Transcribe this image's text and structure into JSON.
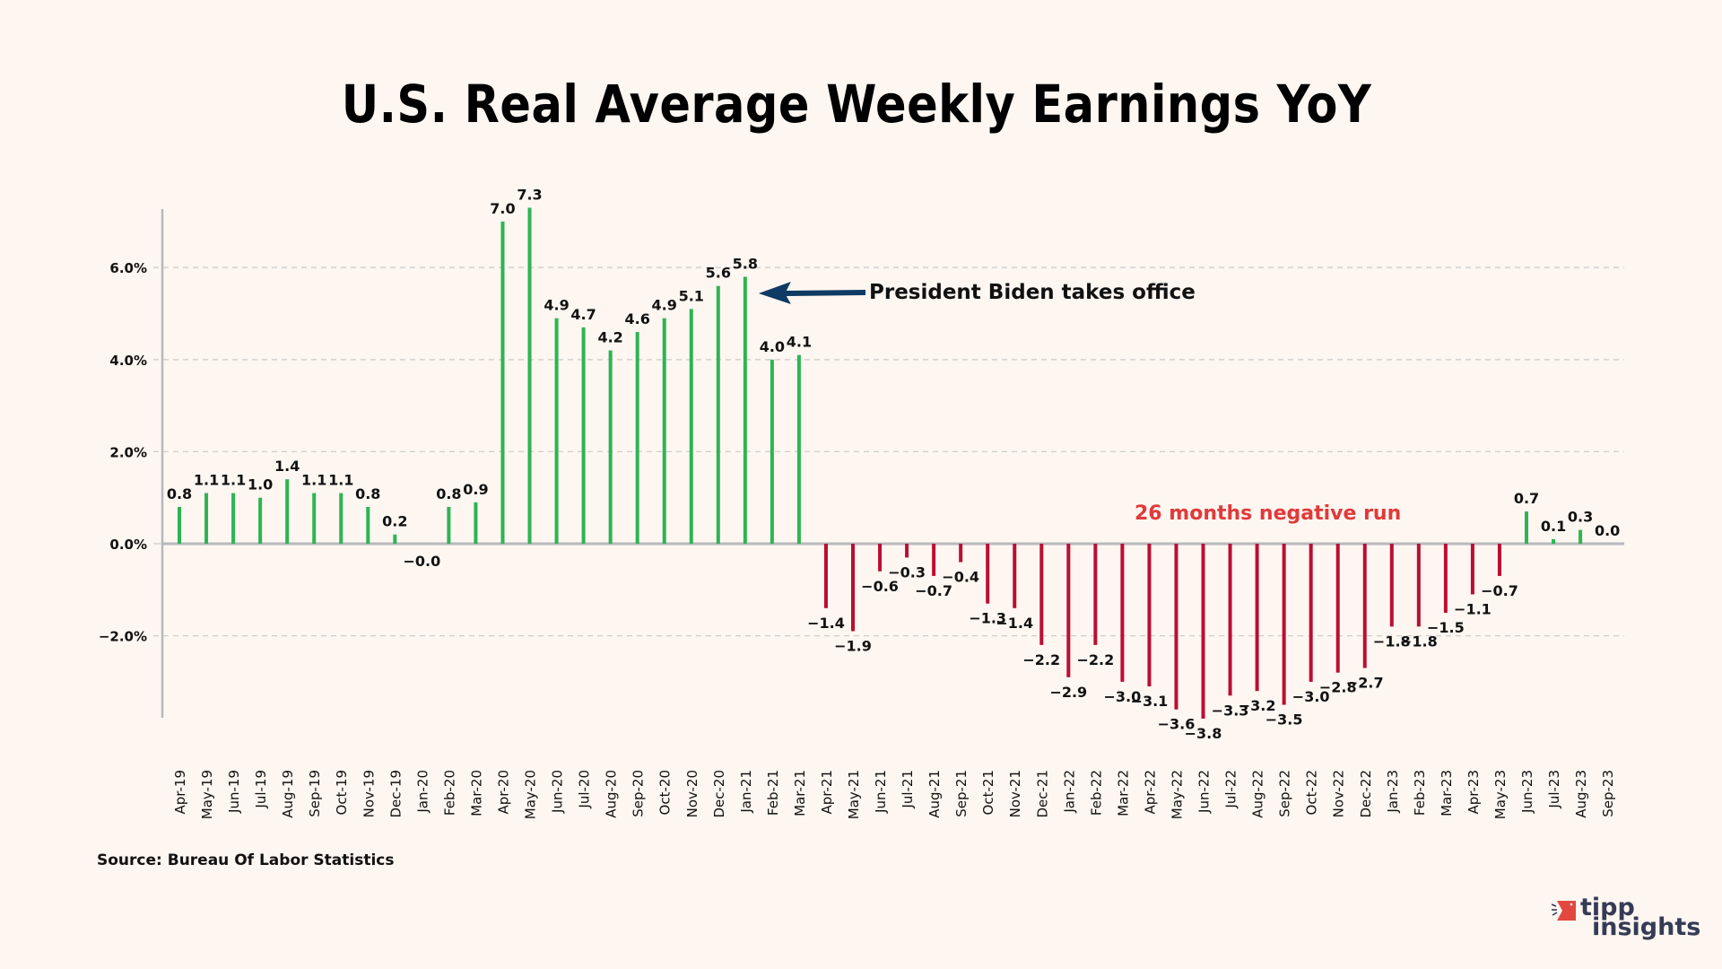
{
  "page": {
    "title": "U.S. Real Average Weekly Earnings YoY",
    "source": "Source: Bureau Of Labor Statistics",
    "annotations": {
      "biden": "President Biden takes office",
      "negative_run": "26 months negative run"
    },
    "logo": {
      "word1": "tipp",
      "word2": "insights"
    },
    "colors": {
      "positive": "#2db552",
      "negative": "#bb0e33",
      "arrow": "#0e3a63",
      "negative_run_text": "#e03a3a",
      "background": "#fdf6f1",
      "logo_accent": "#e2483f",
      "logo_text": "#363b55"
    }
  },
  "chart_data": {
    "type": "bar",
    "title": "U.S. Real Average Weekly Earnings YoY",
    "xlabel": "",
    "ylabel": "",
    "ylim": [
      -3.8,
      7.3
    ],
    "yticks": [
      -2.0,
      0.0,
      2.0,
      4.0,
      6.0
    ],
    "ytick_labels": [
      "−2.0%",
      "0.0%",
      "2.0%",
      "4.0%",
      "6.0%"
    ],
    "grid": true,
    "categories": [
      "Apr-19",
      "May-19",
      "Jun-19",
      "Jul-19",
      "Aug-19",
      "Sep-19",
      "Oct-19",
      "Nov-19",
      "Dec-19",
      "Jan-20",
      "Feb-20",
      "Mar-20",
      "Apr-20",
      "May-20",
      "Jun-20",
      "Jul-20",
      "Aug-20",
      "Sep-20",
      "Oct-20",
      "Nov-20",
      "Dec-20",
      "Jan-21",
      "Feb-21",
      "Mar-21",
      "Apr-21",
      "May-21",
      "Jun-21",
      "Jul-21",
      "Aug-21",
      "Sep-21",
      "Oct-21",
      "Nov-21",
      "Dec-21",
      "Jan-22",
      "Feb-22",
      "Mar-22",
      "Apr-22",
      "May-22",
      "Jun-22",
      "Jul-22",
      "Aug-22",
      "Sep-22",
      "Oct-22",
      "Nov-22",
      "Dec-22",
      "Jan-23",
      "Feb-23",
      "Mar-23",
      "Apr-23",
      "May-23",
      "Jun-23",
      "Jul-23",
      "Aug-23",
      "Sep-23"
    ],
    "values": [
      0.8,
      1.1,
      1.1,
      1.0,
      1.4,
      1.1,
      1.1,
      0.8,
      0.2,
      -0.0,
      0.8,
      0.9,
      7.0,
      7.3,
      4.9,
      4.7,
      4.2,
      4.6,
      4.9,
      5.1,
      5.6,
      5.8,
      4.0,
      4.1,
      -1.4,
      -1.9,
      -0.6,
      -0.3,
      -0.7,
      -0.4,
      -1.3,
      -1.4,
      -2.2,
      -2.9,
      -2.2,
      -3.0,
      -3.1,
      -3.6,
      -3.8,
      -3.3,
      -3.2,
      -3.5,
      -3.0,
      -2.8,
      -2.7,
      -1.8,
      -1.8,
      -1.5,
      -1.1,
      -0.7,
      0.7,
      0.1,
      0.3,
      0.0
    ],
    "labels": [
      "0.8",
      "1.1",
      "1.1",
      "1.0",
      "1.4",
      "1.1",
      "1.1",
      "0.8",
      "0.2",
      "−0.0",
      "0.8",
      "0.9",
      "7.0",
      "7.3",
      "4.9",
      "4.7",
      "4.2",
      "4.6",
      "4.9",
      "5.1",
      "5.6",
      "5.8",
      "4.0",
      "4.1",
      "−1.4",
      "−1.9",
      "−0.6",
      "−0.3",
      "−0.7",
      "−0.4",
      "−1.3",
      "−1.4",
      "−2.2",
      "−2.9",
      "−2.2",
      "−3.0",
      "−3.1",
      "−3.6",
      "−3.8",
      "−3.3",
      "−3.2",
      "−3.5",
      "−3.0",
      "−2.8",
      "−2.7",
      "−1.8",
      "−1.8",
      "−1.5",
      "−1.1",
      "−0.7",
      "0.7",
      "0.1",
      "0.3",
      "0.0"
    ],
    "annotations": [
      {
        "text": "President Biden takes office",
        "points_to": "Jan-21",
        "style": "arrow"
      },
      {
        "text": "26 months negative run",
        "range": [
          "Apr-21",
          "May-23"
        ]
      }
    ]
  }
}
